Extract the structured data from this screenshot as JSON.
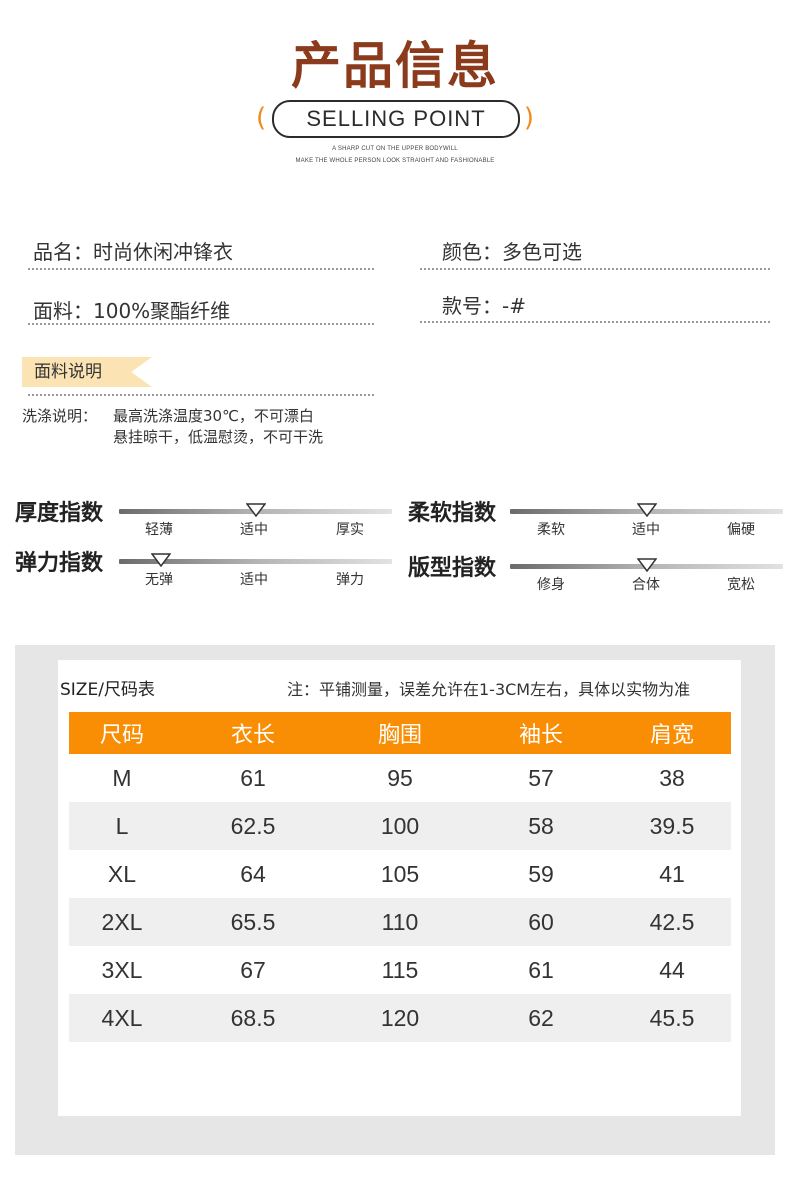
{
  "header": {
    "title": "产品信息",
    "selling_point": "SELLING POINT",
    "paren_left": "(",
    "paren_right": ")",
    "sub_line_1": "A SHARP CUT ON THE UPPER BODYWILL",
    "sub_line_2": "MAKE THE WHOLE PERSON LOOK STRAIGHT AND FASHIONABLE"
  },
  "info": {
    "name": "品名：时尚休闲冲锋衣",
    "color": "颜色：多色可选",
    "fabric": "面料：100%聚酯纤维",
    "style_no": "款号：-#"
  },
  "fabric_notes": {
    "tag": "面料说明",
    "wash_label": "洗涤说明：",
    "wash_line_1": "最高洗涤温度30℃，不可漂白",
    "wash_line_2": "悬挂晾干，低温慰烫，不可干洗"
  },
  "indices": {
    "thickness": {
      "label": "厚度指数",
      "options": [
        "轻薄",
        "适中",
        "厚实"
      ],
      "selected": 1
    },
    "softness": {
      "label": "柔软指数",
      "options": [
        "柔软",
        "适中",
        "偏硬"
      ],
      "selected": 1
    },
    "elasticity": {
      "label": "弹力指数",
      "options": [
        "无弹",
        "适中",
        "弹力"
      ],
      "selected": 0
    },
    "fit": {
      "label": "版型指数",
      "options": [
        "修身",
        "合体",
        "宽松"
      ],
      "selected": 1
    }
  },
  "size_chart": {
    "title": "SIZE/尺码表",
    "note": "注：平铺测量，误差允许在1-3CM左右，具体以实物为准",
    "header_color": "#f98d04",
    "columns": [
      "尺码",
      "衣长",
      "胸围",
      "袖长",
      "肩宽"
    ],
    "rows": [
      [
        "M",
        "61",
        "95",
        "57",
        "38"
      ],
      [
        "L",
        "62.5",
        "100",
        "58",
        "39.5"
      ],
      [
        "XL",
        "64",
        "105",
        "59",
        "41"
      ],
      [
        "2XL",
        "65.5",
        "110",
        "60",
        "42.5"
      ],
      [
        "3XL",
        "67",
        "115",
        "61",
        "44"
      ],
      [
        "4XL",
        "68.5",
        "120",
        "62",
        "45.5"
      ]
    ]
  }
}
